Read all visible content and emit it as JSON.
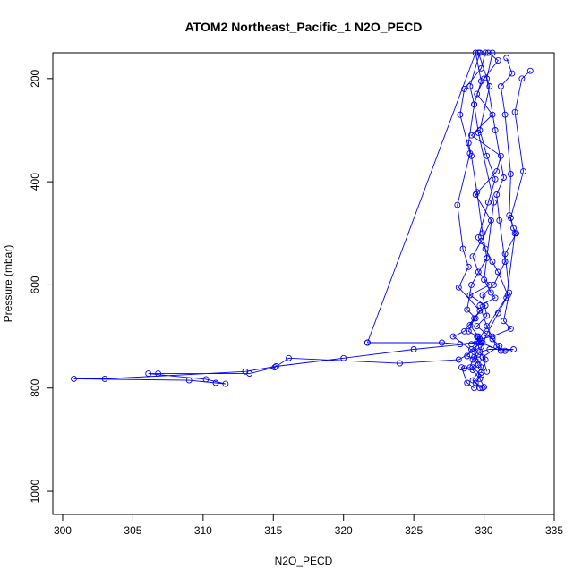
{
  "chart_data": {
    "type": "line",
    "title": "ATOM2 Northeast_Pacific_1 N2O_PECD",
    "xlabel": "N2O_PECD",
    "ylabel": "Pressure (mbar)",
    "xlim": [
      299.3,
      335.0
    ],
    "ylim": [
      1045,
      150
    ],
    "y_inverted": true,
    "x_ticks": [
      300,
      305,
      310,
      315,
      320,
      325,
      330,
      335
    ],
    "x_tick_labels": [
      "300",
      "305",
      "310",
      "315",
      "320",
      "325",
      "330",
      "335"
    ],
    "y_ticks": [
      200,
      400,
      600,
      800,
      1000
    ],
    "y_tick_labels": [
      "200",
      "400",
      "600",
      "800",
      "1000"
    ],
    "grid": false,
    "legend": "none",
    "colors": {
      "series": "#0000ff",
      "axes": "#000000",
      "background": "#ffffff"
    },
    "series": [
      {
        "marker": "open-circle",
        "line": true,
        "points": [
          [
            329.7,
            800
          ],
          [
            329.4,
            790
          ],
          [
            329.8,
            775
          ],
          [
            329.2,
            760
          ],
          [
            329.6,
            745
          ],
          [
            328.8,
            738
          ],
          [
            329.1,
            725
          ],
          [
            329.9,
            712
          ],
          [
            329.5,
            700
          ],
          [
            328.9,
            690
          ],
          [
            329.3,
            665
          ],
          [
            330.1,
            640
          ],
          [
            329.0,
            620
          ],
          [
            330.4,
            600
          ],
          [
            329.6,
            575
          ],
          [
            329.2,
            545
          ],
          [
            329.8,
            515
          ],
          [
            330.5,
            475
          ],
          [
            329.4,
            425
          ],
          [
            330.9,
            380
          ],
          [
            331.2,
            350
          ],
          [
            329.1,
            310
          ],
          [
            330.6,
            270
          ],
          [
            329.5,
            230
          ],
          [
            330.0,
            200
          ],
          [
            331.0,
            165
          ],
          [
            330.3,
            150
          ]
        ]
      },
      {
        "marker": "open-circle",
        "line": true,
        "points": [
          [
            331.6,
            160
          ],
          [
            332.0,
            190
          ],
          [
            331.2,
            215
          ],
          [
            331.5,
            270
          ],
          [
            331.9,
            385
          ],
          [
            331.8,
            465
          ],
          [
            332.1,
            490
          ],
          [
            332.3,
            500
          ],
          [
            331.5,
            540
          ],
          [
            331.8,
            615
          ],
          [
            331.4,
            670
          ],
          [
            331.9,
            685
          ],
          [
            330.6,
            700
          ],
          [
            329.7,
            705
          ],
          [
            329.1,
            715
          ]
        ]
      },
      {
        "marker": "open-circle",
        "line": true,
        "points": [
          [
            330.1,
            150
          ],
          [
            329.8,
            180
          ],
          [
            328.6,
            220
          ],
          [
            328.3,
            270
          ],
          [
            329.0,
            345
          ],
          [
            328.1,
            445
          ],
          [
            328.5,
            530
          ],
          [
            328.9,
            565
          ],
          [
            328.2,
            605
          ],
          [
            329.7,
            650
          ],
          [
            328.6,
            690
          ],
          [
            327.8,
            700
          ],
          [
            329.3,
            730
          ],
          [
            329.8,
            760
          ],
          [
            329.2,
            785
          ],
          [
            329.9,
            800
          ]
        ]
      },
      {
        "marker": "open-circle",
        "line": true,
        "points": [
          [
            333.3,
            185
          ],
          [
            332.7,
            200
          ],
          [
            332.2,
            265
          ],
          [
            332.8,
            380
          ],
          [
            331.9,
            470
          ],
          [
            332.2,
            500
          ],
          [
            331.6,
            625
          ],
          [
            331.0,
            655
          ],
          [
            330.2,
            695
          ],
          [
            329.6,
            735
          ],
          [
            329.2,
            745
          ],
          [
            329.0,
            760
          ],
          [
            328.6,
            762
          ],
          [
            328.4,
            760
          ],
          [
            328.8,
            790
          ],
          [
            329.3,
            800
          ]
        ]
      },
      {
        "marker": "open-circle",
        "line": true,
        "points": [
          [
            329.8,
            720
          ],
          [
            328.2,
            745
          ],
          [
            324.0,
            752
          ],
          [
            316.1,
            742
          ],
          [
            315.1,
            760
          ],
          [
            313.3,
            772
          ],
          [
            306.8,
            772
          ],
          [
            306.1,
            772
          ],
          [
            310.2,
            783
          ],
          [
            311.6,
            792
          ],
          [
            310.9,
            790
          ],
          [
            309.0,
            785
          ],
          [
            300.8,
            782
          ],
          [
            303.0,
            782
          ],
          [
            313.0,
            768
          ],
          [
            315.2,
            758
          ],
          [
            320.0,
            742
          ],
          [
            325.0,
            725
          ],
          [
            329.8,
            712
          ],
          [
            331.2,
            728
          ]
        ]
      },
      {
        "marker": "open-circle",
        "line": true,
        "points": [
          [
            321.7,
            712
          ],
          [
            327.0,
            712
          ],
          [
            328.3,
            715
          ],
          [
            329.5,
            711
          ],
          [
            331.7,
            620
          ],
          [
            331.0,
            575
          ],
          [
            330.6,
            555
          ],
          [
            330.1,
            530
          ],
          [
            329.6,
            508
          ],
          [
            330.3,
            440
          ],
          [
            330.8,
            395
          ],
          [
            330.2,
            350
          ],
          [
            329.7,
            300
          ],
          [
            330.4,
            215
          ],
          [
            329.6,
            150
          ]
        ]
      },
      {
        "marker": "open-circle",
        "line": true,
        "points": [
          [
            321.7,
            712
          ],
          [
            329.4,
            150
          ],
          [
            329.8,
            205
          ],
          [
            329.3,
            250
          ],
          [
            329.6,
            305
          ],
          [
            330.7,
            440
          ],
          [
            330.0,
            590
          ],
          [
            330.5,
            615
          ],
          [
            330.8,
            625
          ],
          [
            329.7,
            640
          ],
          [
            330.2,
            680
          ],
          [
            330.9,
            720
          ],
          [
            331.5,
            728
          ],
          [
            332.1,
            725
          ],
          [
            330.4,
            725
          ],
          [
            329.7,
            730
          ],
          [
            330.1,
            745
          ],
          [
            329.8,
            770
          ]
        ]
      },
      {
        "marker": "open-circle",
        "line": true,
        "points": [
          [
            329.7,
            150
          ],
          [
            329.0,
            215
          ],
          [
            329.3,
            250
          ],
          [
            328.9,
            325
          ],
          [
            329.1,
            350
          ],
          [
            329.5,
            420
          ],
          [
            329.9,
            500
          ],
          [
            330.2,
            548
          ],
          [
            329.1,
            600
          ],
          [
            328.8,
            648
          ],
          [
            329.4,
            665
          ],
          [
            329.0,
            678
          ],
          [
            329.6,
            700
          ],
          [
            329.3,
            740
          ],
          [
            329.6,
            755
          ],
          [
            329.2,
            765
          ],
          [
            329.7,
            782
          ],
          [
            330.0,
            798
          ]
        ]
      },
      {
        "marker": "open-circle",
        "line": true,
        "points": [
          [
            330.6,
            150
          ],
          [
            330.2,
            200
          ],
          [
            330.8,
            300
          ],
          [
            331.4,
            392
          ],
          [
            330.9,
            425
          ],
          [
            331.1,
            475
          ],
          [
            331.5,
            555
          ],
          [
            330.7,
            600
          ],
          [
            329.9,
            620
          ],
          [
            330.2,
            660
          ],
          [
            329.5,
            680
          ],
          [
            330.6,
            705
          ],
          [
            331.1,
            718
          ],
          [
            329.9,
            740
          ],
          [
            330.2,
            768
          ]
        ]
      }
    ]
  }
}
